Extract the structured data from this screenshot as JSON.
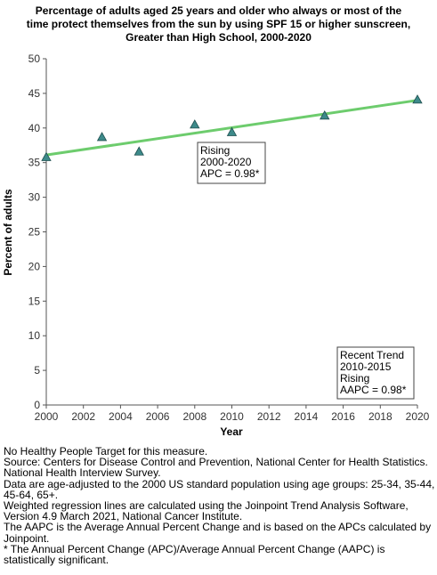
{
  "chart_data": {
    "type": "scatter",
    "title_lines": [
      "Percentage of adults aged 25 years and older who always or most of the",
      "time protect themselves from the sun by using SPF 15 or higher sunscreen,",
      "Greater than High School,  2000-2020"
    ],
    "xlabel": "Year",
    "ylabel": "Percent of adults",
    "xlim": [
      2000,
      2020
    ],
    "ylim": [
      0,
      50
    ],
    "x_ticks": [
      2000,
      2002,
      2004,
      2006,
      2008,
      2010,
      2012,
      2014,
      2016,
      2018,
      2020
    ],
    "y_ticks": [
      0,
      5,
      10,
      15,
      20,
      25,
      30,
      35,
      40,
      45,
      50
    ],
    "grid": false,
    "series": [
      {
        "marker": "triangle",
        "color": "#3d8a8a",
        "points": [
          {
            "x": 2000,
            "y": 35.8
          },
          {
            "x": 2003,
            "y": 38.7
          },
          {
            "x": 2005,
            "y": 36.6
          },
          {
            "x": 2008,
            "y": 40.5
          },
          {
            "x": 2010,
            "y": 39.4
          },
          {
            "x": 2015,
            "y": 41.8
          },
          {
            "x": 2020,
            "y": 44.1
          }
        ]
      }
    ],
    "trend_line": {
      "color": "#6dcc6d",
      "x": [
        2000,
        2020
      ],
      "y": [
        36.1,
        44.0
      ]
    },
    "annotations": [
      {
        "lines": [
          "Rising",
          "2000-2020",
          "APC =  0.98*"
        ]
      },
      {
        "lines": [
          "Recent Trend",
          "2010-2015",
          "Rising",
          "AAPC =  0.98*"
        ]
      }
    ]
  },
  "notes": [
    "No Healthy People Target for this measure.",
    "Source: Centers for Disease Control and Prevention, National Center for Health Statistics. National Health Interview Survey.",
    "Data are age-adjusted to the 2000 US standard population using age groups: 25-34, 35-44, 45-64, 65+.",
    "Weighted regression lines are calculated using the Joinpoint Trend Analysis Software, Version 4.9 March 2021, National Cancer Institute.",
    "The AAPC is the Average Annual Percent Change and is based on the APCs calculated by Joinpoint.",
    "* The Annual Percent Change (APC)/Average Annual Percent Change (AAPC) is statistically significant."
  ]
}
